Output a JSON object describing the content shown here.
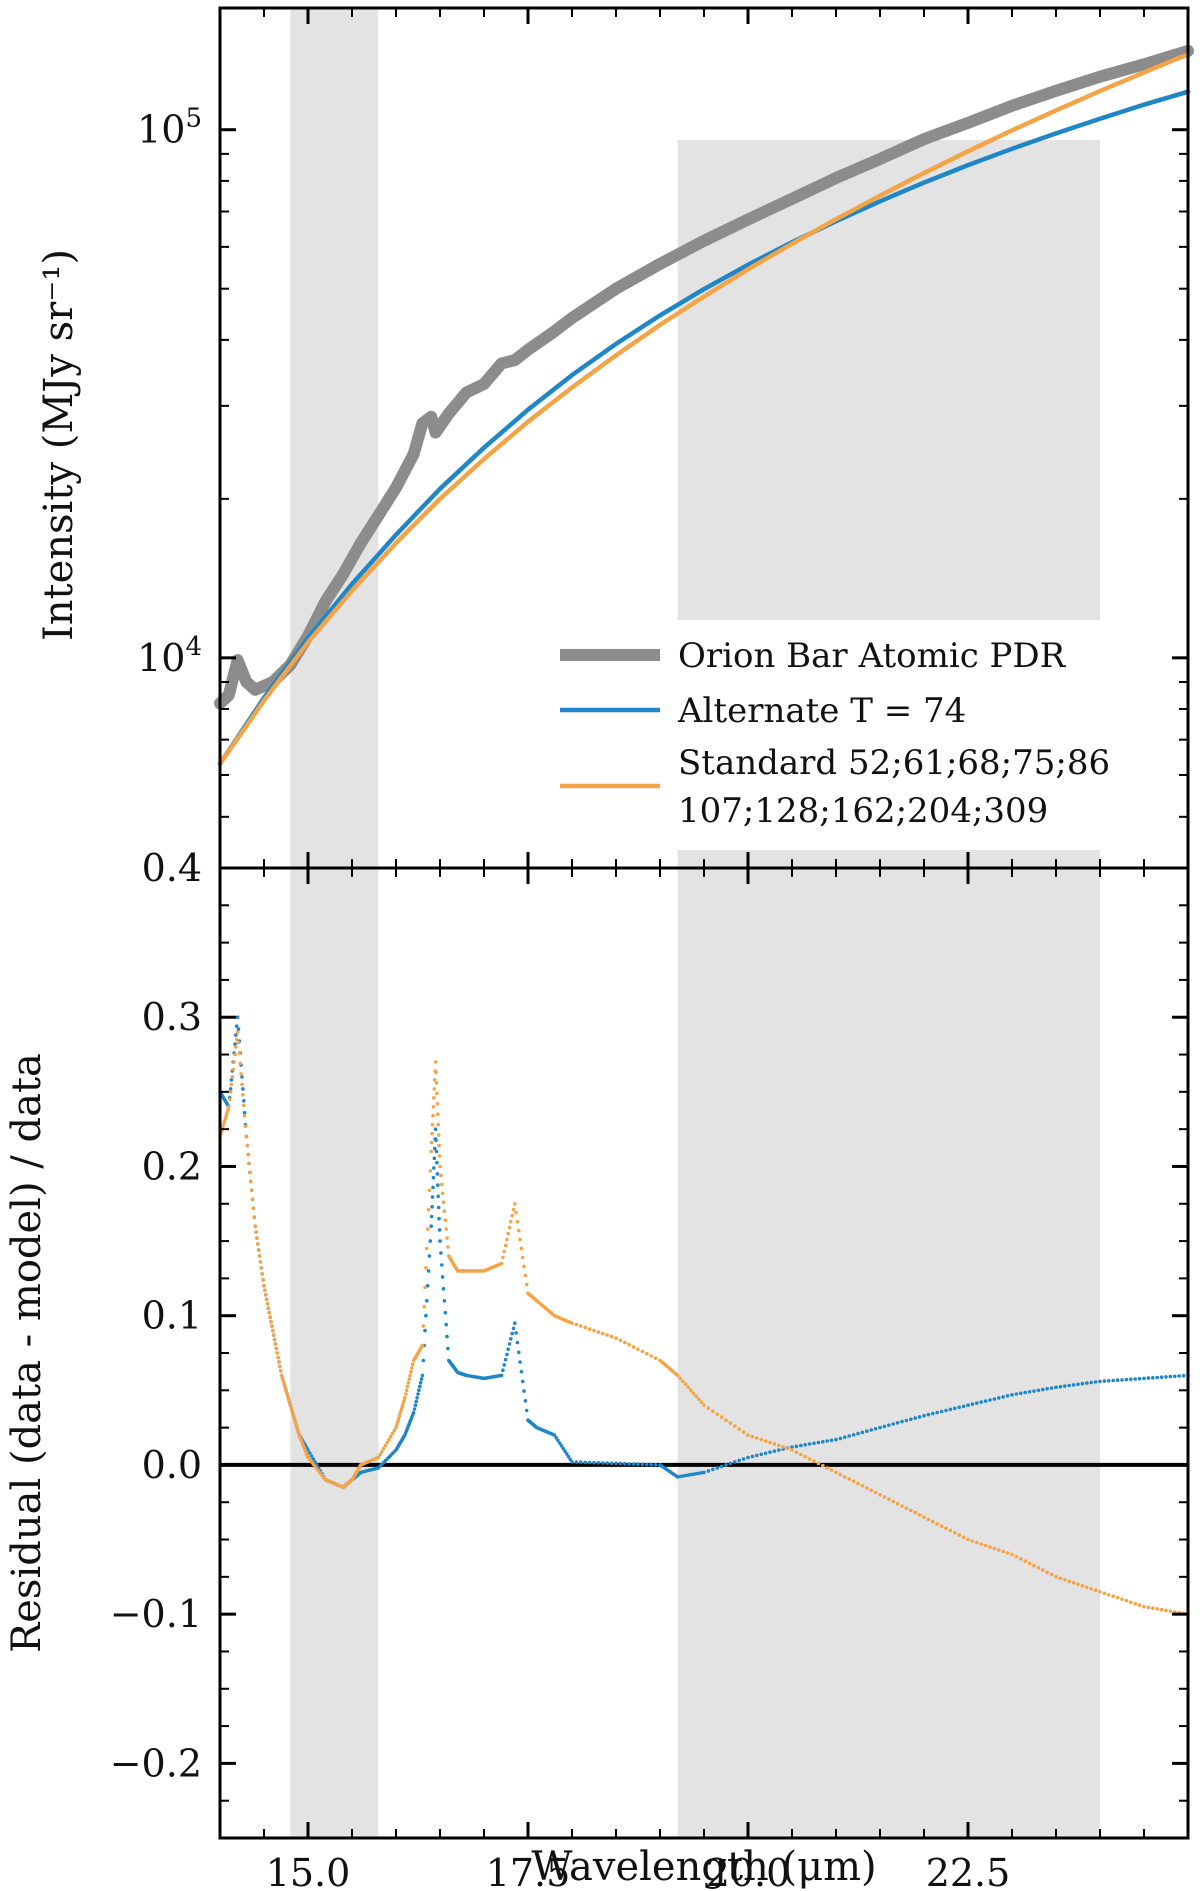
{
  "chart_data": [
    {
      "type": "line",
      "panel": "top",
      "ylabel": "Intensity (MJy sr⁻¹)",
      "yscale": "log",
      "xlim": [
        14.0,
        25.0
      ],
      "ylim": [
        4000,
        170000
      ],
      "yticks": [
        {
          "value": 10000,
          "base": "10",
          "exp": "4"
        },
        {
          "value": 100000,
          "base": "10",
          "exp": "5"
        }
      ],
      "shaded_regions": [
        [
          14.8,
          15.8
        ],
        [
          19.2,
          24.0
        ]
      ],
      "legend_position": "lower right",
      "series": [
        {
          "name": "Orion Bar Atomic PDR",
          "color": "#8c8c8c",
          "x": [
            14.0,
            14.1,
            14.2,
            14.3,
            14.4,
            14.6,
            14.8,
            15.0,
            15.2,
            15.4,
            15.6,
            15.8,
            16.0,
            16.2,
            16.3,
            16.4,
            16.45,
            16.6,
            16.8,
            17.0,
            17.2,
            17.35,
            17.5,
            17.8,
            18.0,
            18.5,
            19.0,
            19.5,
            20.0,
            20.5,
            21.0,
            21.5,
            22.0,
            22.5,
            23.0,
            23.5,
            24.0,
            24.5,
            25.0
          ],
          "y": [
            8200,
            8500,
            9900,
            9000,
            8700,
            9000,
            9700,
            11000,
            12800,
            14400,
            16500,
            18600,
            21000,
            24300,
            27800,
            28600,
            26700,
            29000,
            31800,
            33000,
            36100,
            36600,
            38300,
            41500,
            44000,
            50000,
            55700,
            61600,
            67600,
            74000,
            81000,
            88000,
            96000,
            103000,
            111000,
            118500,
            126000,
            133000,
            141000
          ]
        },
        {
          "name": "Alternate T = 74",
          "color": "#1f86c8",
          "x": [
            14.0,
            14.5,
            15.0,
            15.5,
            16.0,
            16.5,
            17.0,
            17.5,
            18.0,
            18.5,
            19.0,
            19.5,
            20.0,
            20.5,
            21.0,
            21.5,
            22.0,
            22.5,
            23.0,
            23.5,
            24.0,
            24.5,
            25.0
          ],
          "y": [
            6300,
            8400,
            10900,
            13800,
            17100,
            20900,
            25000,
            29500,
            34300,
            39300,
            44500,
            49900,
            55500,
            61200,
            67100,
            73200,
            79400,
            85700,
            92000,
            98400,
            104900,
            111500,
            118000
          ]
        },
        {
          "name": "Standard 52;61;68;75;86 107;128;162;204;309",
          "color": "#f4a447",
          "x": [
            14.0,
            14.5,
            15.0,
            15.5,
            16.0,
            16.5,
            17.0,
            17.5,
            18.0,
            18.5,
            19.0,
            19.5,
            20.0,
            20.5,
            21.0,
            21.5,
            22.0,
            22.5,
            23.0,
            23.5,
            24.0,
            24.5,
            25.0
          ],
          "y": [
            6300,
            8300,
            10700,
            13400,
            16500,
            20000,
            23800,
            28000,
            32500,
            37400,
            42700,
            48300,
            54400,
            60800,
            67700,
            75000,
            82800,
            91000,
            99700,
            108800,
            118400,
            128400,
            139000
          ]
        }
      ]
    },
    {
      "type": "scatter",
      "panel": "bottom",
      "xlabel": "Wavelength (μm)",
      "ylabel": "Residual (data - model) / data",
      "xlim": [
        14.0,
        25.0
      ],
      "ylim": [
        -0.25,
        0.4
      ],
      "xticks": [
        "15.0",
        "17.5",
        "20.0",
        "22.5"
      ],
      "xtick_values": [
        15.0,
        17.5,
        20.0,
        22.5
      ],
      "yticks": [
        "−0.2",
        "−0.1",
        "0.0",
        "0.1",
        "0.2",
        "0.3",
        "0.4"
      ],
      "ytick_values": [
        -0.2,
        -0.1,
        0.0,
        0.1,
        0.2,
        0.3,
        0.4
      ],
      "zero_line": true,
      "shaded_regions": [
        [
          14.8,
          15.8
        ],
        [
          19.2,
          24.0
        ]
      ],
      "series": [
        {
          "name": "Alternate T = 74",
          "color": "#1f86c8",
          "x": [
            14.0,
            14.1,
            14.2,
            14.3,
            14.4,
            14.5,
            14.6,
            14.7,
            14.8,
            14.9,
            15.0,
            15.2,
            15.4,
            15.5,
            15.6,
            15.8,
            16.0,
            16.1,
            16.2,
            16.3,
            16.4,
            16.45,
            16.5,
            16.6,
            16.7,
            16.8,
            17.0,
            17.2,
            17.35,
            17.5,
            17.6,
            17.8,
            18.0,
            18.5,
            19.0,
            19.2,
            19.5,
            20.0,
            20.5,
            21.0,
            21.5,
            22.0,
            22.5,
            23.0,
            23.5,
            24.0,
            24.5,
            25.0
          ],
          "y": [
            0.25,
            0.24,
            0.3,
            0.22,
            0.16,
            0.12,
            0.09,
            0.06,
            0.04,
            0.02,
            0.01,
            -0.01,
            -0.015,
            -0.01,
            -0.005,
            -0.002,
            0.01,
            0.02,
            0.035,
            0.06,
            0.16,
            0.225,
            0.15,
            0.07,
            0.062,
            0.06,
            0.058,
            0.06,
            0.095,
            0.03,
            0.025,
            0.02,
            0.002,
            0.001,
            0.0,
            -0.008,
            -0.005,
            0.005,
            0.012,
            0.017,
            0.025,
            0.033,
            0.04,
            0.047,
            0.052,
            0.056,
            0.058,
            0.06
          ]
        },
        {
          "name": "Standard 52;61;68;75;86 107;128;162;204;309",
          "color": "#f4a447",
          "x": [
            14.0,
            14.1,
            14.2,
            14.3,
            14.4,
            14.5,
            14.6,
            14.7,
            14.8,
            14.9,
            15.0,
            15.2,
            15.4,
            15.5,
            15.6,
            15.8,
            16.0,
            16.1,
            16.2,
            16.3,
            16.4,
            16.45,
            16.5,
            16.6,
            16.7,
            16.8,
            17.0,
            17.2,
            17.35,
            17.5,
            17.6,
            17.8,
            18.0,
            18.5,
            19.0,
            19.2,
            19.5,
            20.0,
            20.5,
            21.0,
            21.5,
            22.0,
            22.5,
            23.0,
            23.5,
            24.0,
            24.5,
            25.0
          ],
          "y": [
            0.22,
            0.24,
            0.29,
            0.22,
            0.16,
            0.12,
            0.09,
            0.06,
            0.04,
            0.02,
            0.005,
            -0.01,
            -0.015,
            -0.01,
            0.0,
            0.005,
            0.025,
            0.045,
            0.07,
            0.08,
            0.21,
            0.27,
            0.2,
            0.14,
            0.13,
            0.13,
            0.13,
            0.135,
            0.175,
            0.115,
            0.11,
            0.1,
            0.095,
            0.085,
            0.07,
            0.06,
            0.04,
            0.02,
            0.01,
            -0.005,
            -0.02,
            -0.035,
            -0.05,
            -0.06,
            -0.075,
            -0.085,
            -0.095,
            -0.1
          ]
        }
      ]
    }
  ]
}
